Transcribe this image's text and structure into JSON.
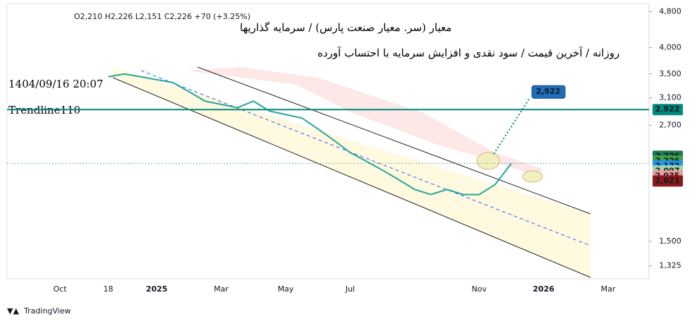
{
  "header": {
    "ohlc": "O2,210 H2,226 L2,151 C2,226 +70 (+3.25%)",
    "symbol_line": "معیار  (سر. معیار صنعت پارس) / سرمایه گذاریها",
    "subtitle": "روزانه / آخرین قیمت / سود نقدی و افزایش سرمایه با احتساب آورده",
    "datetime": "1404/09/16 20:07",
    "indicator": "Trendline110"
  },
  "chart_data": {
    "type": "line",
    "log_scale": true,
    "categories": [
      "Oct",
      null,
      null,
      "18",
      null,
      null,
      "2025",
      null,
      null,
      null,
      "Mar",
      null,
      null,
      null,
      "May",
      null,
      null,
      null,
      "Jul",
      null,
      null,
      null,
      null,
      null,
      null,
      null,
      "Nov",
      null,
      null,
      null,
      "2026",
      null,
      null,
      null,
      "Mar"
    ],
    "series": [
      {
        "color": "#26a69a",
        "values": [
          null,
          null,
          null,
          3450,
          3500,
          3450,
          3400,
          3350,
          3200,
          3050,
          3000,
          2950,
          3050,
          2900,
          2850,
          2800,
          2650,
          2500,
          2350,
          2250,
          2150,
          2050,
          1950,
          1900,
          1950,
          1900,
          1900,
          2000,
          2226,
          null,
          null,
          null,
          null,
          null,
          null
        ]
      }
    ],
    "ylim": [
      1240,
      5000
    ],
    "yticks": [
      {
        "value": 4800,
        "label": "4,800"
      },
      {
        "value": 4000,
        "label": "4,000"
      },
      {
        "value": 3500,
        "label": "3,500"
      },
      {
        "value": 3100,
        "label": "3,100"
      },
      {
        "value": 2700,
        "label": "2,700"
      },
      {
        "value": 1500,
        "label": "1,500"
      },
      {
        "value": 1325,
        "label": "1,325"
      }
    ],
    "hline": {
      "value": 2922,
      "label": "2,922",
      "color": "#00897b"
    },
    "price_labels": [
      {
        "value": 2226,
        "label": "2,226",
        "color": "#1b7a50"
      },
      {
        "value": 2226,
        "label": "2,226",
        "color": "#43a047"
      },
      {
        "value": 2172,
        "label": "2,172",
        "color": "#2196f3"
      },
      {
        "value": 2097,
        "label": "2,097",
        "color": "#a5d6a7"
      },
      {
        "value": 2035,
        "label": "2,035",
        "color": "#ef9a9a"
      },
      {
        "value": 2021,
        "label": "2,021",
        "color": "#8b1a1a"
      }
    ],
    "callout": {
      "value": 2922,
      "label": "2,922"
    }
  },
  "footer": {
    "brand": "TradingView"
  }
}
